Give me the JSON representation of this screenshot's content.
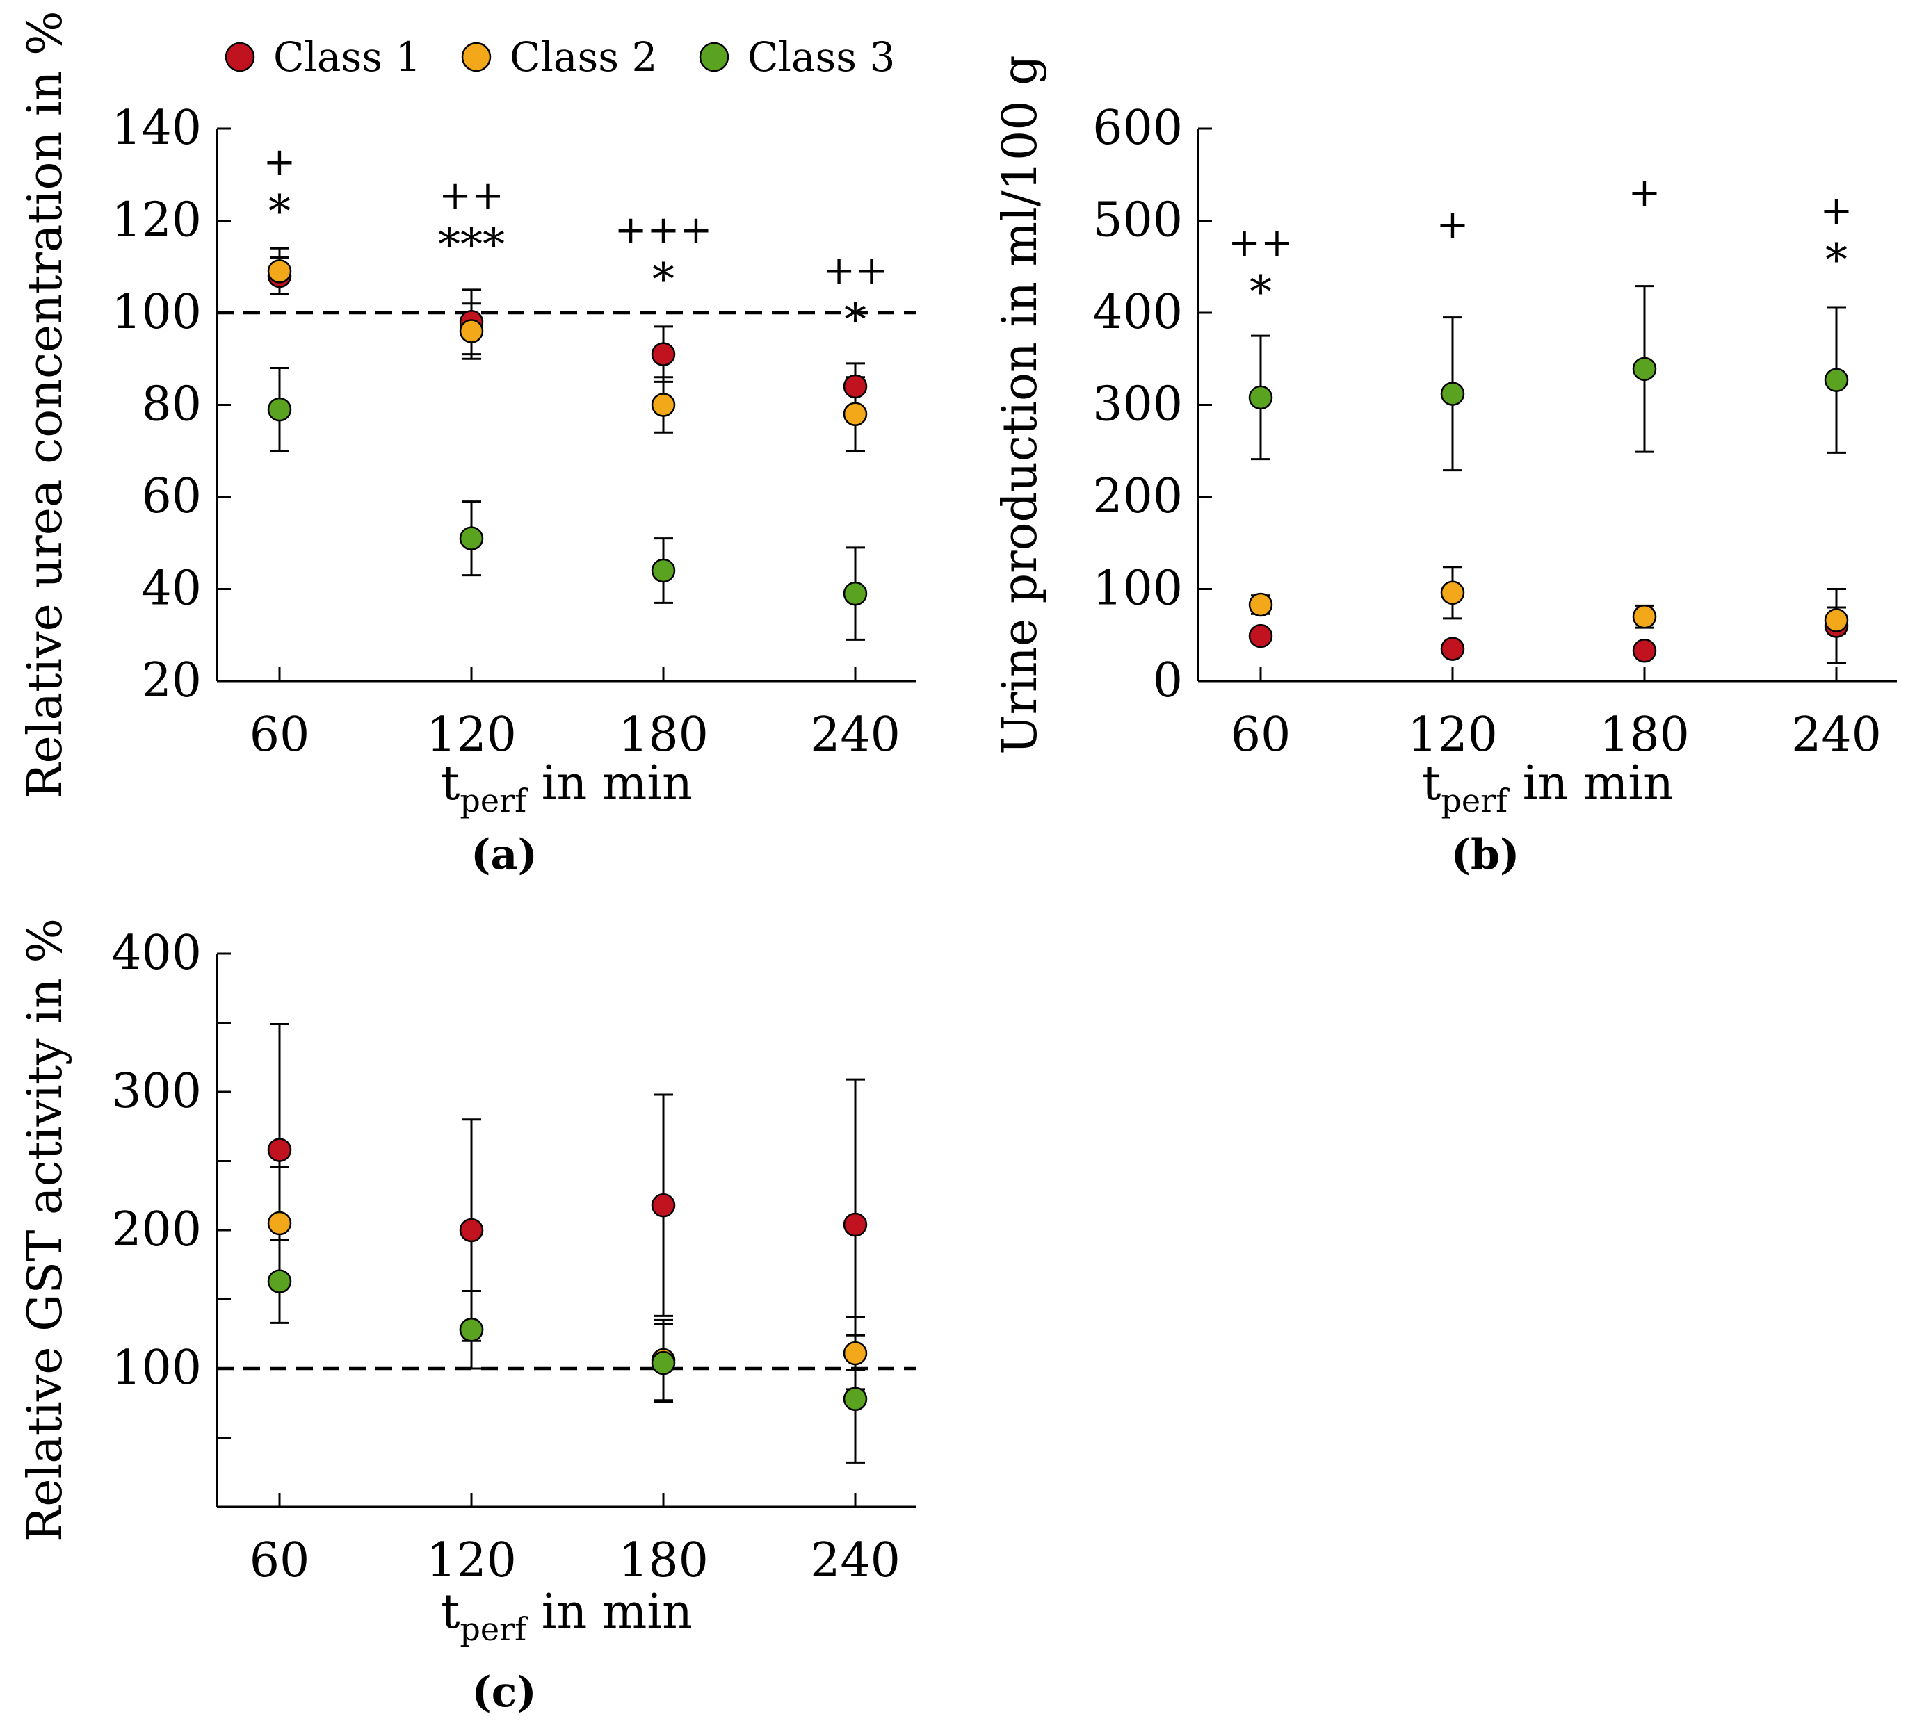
{
  "legend": {
    "items": [
      {
        "label": "Class 1",
        "color": "#c1121f"
      },
      {
        "label": "Class 2",
        "color": "#f2a818"
      },
      {
        "label": "Class 3",
        "color": "#5aa321"
      }
    ]
  },
  "chart_data": [
    {
      "id": "a",
      "type": "scatter",
      "panel_label": "(a)",
      "ylabel": "Relative urea concentration in %",
      "xlabel_main": "t",
      "xlabel_sub": "perf",
      "xlabel_tail": " in min",
      "x": [
        60,
        120,
        180,
        240
      ],
      "x_tick_labels": [
        "60",
        "120",
        "180",
        "240"
      ],
      "ylim": [
        20,
        140
      ],
      "y_ticks": [
        20,
        40,
        60,
        80,
        100,
        120,
        140
      ],
      "y_tick_labels": [
        "20",
        "40",
        "60",
        "80",
        "100",
        "120",
        "140"
      ],
      "reference_line": 100,
      "series": [
        {
          "name": "Class 1",
          "values": [
            108,
            98,
            91,
            84
          ],
          "err": [
            4,
            7,
            6,
            5
          ]
        },
        {
          "name": "Class 2",
          "values": [
            109,
            96,
            80,
            78
          ],
          "err": [
            5,
            6,
            6,
            8
          ]
        },
        {
          "name": "Class 3",
          "values": [
            79,
            51,
            44,
            39
          ],
          "err": [
            9,
            8,
            7,
            10
          ]
        }
      ],
      "significance": [
        {
          "x": 60,
          "lines": [
            "+",
            "*"
          ]
        },
        {
          "x": 120,
          "lines": [
            "++",
            "***"
          ]
        },
        {
          "x": 180,
          "lines": [
            "+++",
            "*"
          ]
        },
        {
          "x": 240,
          "lines": [
            "++",
            "*"
          ]
        }
      ]
    },
    {
      "id": "b",
      "type": "scatter",
      "panel_label": "(b)",
      "ylabel": "Urine production in ml/100 g",
      "xlabel_main": "t",
      "xlabel_sub": "perf",
      "xlabel_tail": " in min",
      "x": [
        60,
        120,
        180,
        240
      ],
      "x_tick_labels": [
        "60",
        "120",
        "180",
        "240"
      ],
      "ylim": [
        0,
        600
      ],
      "y_ticks": [
        0,
        100,
        200,
        300,
        400,
        500,
        600
      ],
      "y_tick_labels": [
        "0",
        "100",
        "200",
        "300",
        "400",
        "500",
        "600"
      ],
      "reference_line": null,
      "series": [
        {
          "name": "Class 1",
          "values": [
            49,
            35,
            33,
            60
          ],
          "err": [
            6,
            7,
            5,
            40
          ]
        },
        {
          "name": "Class 2",
          "values": [
            83,
            96,
            70,
            66
          ],
          "err": [
            10,
            28,
            12,
            14
          ]
        },
        {
          "name": "Class 3",
          "values": [
            308,
            312,
            339,
            327
          ],
          "err": [
            67,
            83,
            90,
            79
          ]
        }
      ],
      "significance": [
        {
          "x": 60,
          "lines": [
            "++",
            "*"
          ]
        },
        {
          "x": 120,
          "lines": [
            "+"
          ]
        },
        {
          "x": 180,
          "lines": [
            "+"
          ]
        },
        {
          "x": 240,
          "lines": [
            "+",
            "*"
          ]
        }
      ]
    },
    {
      "id": "c",
      "type": "scatter",
      "panel_label": "(c)",
      "ylabel": "Relative GST activity in %",
      "xlabel_main": "t",
      "xlabel_sub": "perf",
      "xlabel_tail": " in min",
      "x": [
        60,
        120,
        180,
        240
      ],
      "x_tick_labels": [
        "60",
        "120",
        "180",
        "240"
      ],
      "ylim": [
        0,
        400
      ],
      "y_ticks": [
        100,
        200,
        300,
        400
      ],
      "y_tick_labels": [
        "100",
        "200",
        "300",
        "400"
      ],
      "y_minor_ticks": [
        50,
        150,
        250,
        350
      ],
      "reference_line": 100,
      "series": [
        {
          "name": "Class 1",
          "values": [
            258,
            200,
            218,
            204
          ],
          "err": [
            91,
            80,
            80,
            105
          ]
        },
        {
          "name": "Class 2",
          "values": [
            205,
            128,
            106,
            111
          ],
          "err": [
            41,
            28,
            29,
            26
          ]
        },
        {
          "name": "Class 3",
          "values": [
            163,
            128,
            104,
            78
          ],
          "err": [
            30,
            28,
            28,
            46
          ]
        }
      ],
      "significance": []
    }
  ]
}
